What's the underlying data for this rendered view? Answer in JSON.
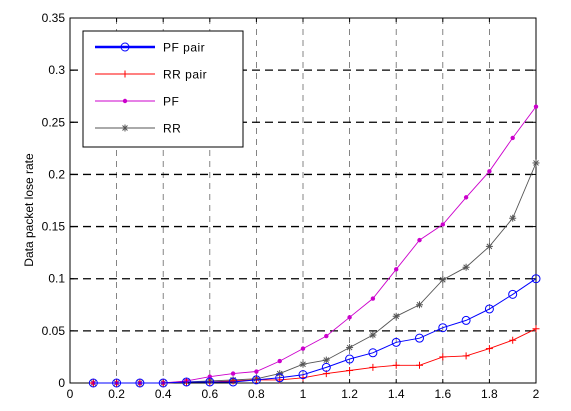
{
  "chart_data": {
    "type": "line",
    "title": "",
    "xlabel": "",
    "ylabel": "Data packet lose rate",
    "xlim": [
      0,
      2
    ],
    "ylim": [
      0,
      0.35
    ],
    "x_ticks": [
      "0",
      "0.2",
      "0.4",
      "0.6",
      "0.8",
      "1",
      "1.2",
      "1.4",
      "1.6",
      "1.8",
      "2"
    ],
    "y_ticks": [
      "0",
      "0.05",
      "0.1",
      "0.15",
      "0.2",
      "0.25",
      "0.3",
      "0.35"
    ],
    "grid": true,
    "legend_position": "top-left",
    "series": [
      {
        "name": "PF pair",
        "color": "#0000ff",
        "marker": "circle",
        "x": [
          0.1,
          0.2,
          0.3,
          0.4,
          0.5,
          0.6,
          0.7,
          0.8,
          0.9,
          1.0,
          1.1,
          1.2,
          1.3,
          1.4,
          1.5,
          1.6,
          1.7,
          1.8,
          1.9,
          2.0
        ],
        "values": [
          0,
          0,
          0,
          0,
          0.001,
          0.001,
          0.001,
          0.003,
          0.005,
          0.008,
          0.015,
          0.023,
          0.029,
          0.039,
          0.043,
          0.053,
          0.06,
          0.071,
          0.085,
          0.1
        ]
      },
      {
        "name": "RR pair",
        "color": "#ff0000",
        "marker": "plus",
        "x": [
          0.1,
          0.2,
          0.3,
          0.4,
          0.5,
          0.6,
          0.7,
          0.8,
          0.9,
          1.0,
          1.1,
          1.2,
          1.3,
          1.4,
          1.5,
          1.6,
          1.7,
          1.8,
          1.9,
          2.0
        ],
        "values": [
          0,
          0,
          0,
          0,
          0.001,
          0.001,
          0.002,
          0.003,
          0.003,
          0.005,
          0.009,
          0.012,
          0.015,
          0.017,
          0.017,
          0.025,
          0.026,
          0.033,
          0.041,
          0.052
        ]
      },
      {
        "name": "PF",
        "color": "#cc00cc",
        "marker": "dot",
        "x": [
          0.1,
          0.2,
          0.3,
          0.4,
          0.5,
          0.6,
          0.7,
          0.8,
          0.9,
          1.0,
          1.1,
          1.2,
          1.3,
          1.4,
          1.5,
          1.6,
          1.7,
          1.8,
          1.9,
          2.0
        ],
        "values": [
          0,
          0,
          0,
          0,
          0.002,
          0.006,
          0.009,
          0.011,
          0.021,
          0.033,
          0.045,
          0.063,
          0.081,
          0.109,
          0.137,
          0.152,
          0.178,
          0.203,
          0.235,
          0.265
        ]
      },
      {
        "name": "RR",
        "color": "#555555",
        "marker": "star",
        "x": [
          0.1,
          0.2,
          0.3,
          0.4,
          0.5,
          0.6,
          0.7,
          0.8,
          0.9,
          1.0,
          1.1,
          1.2,
          1.3,
          1.4,
          1.5,
          1.6,
          1.7,
          1.8,
          1.9,
          2.0
        ],
        "values": [
          0,
          0,
          0,
          0,
          0.001,
          0.002,
          0.003,
          0.004,
          0.009,
          0.018,
          0.022,
          0.034,
          0.046,
          0.064,
          0.075,
          0.099,
          0.111,
          0.131,
          0.158,
          0.211
        ]
      }
    ]
  }
}
